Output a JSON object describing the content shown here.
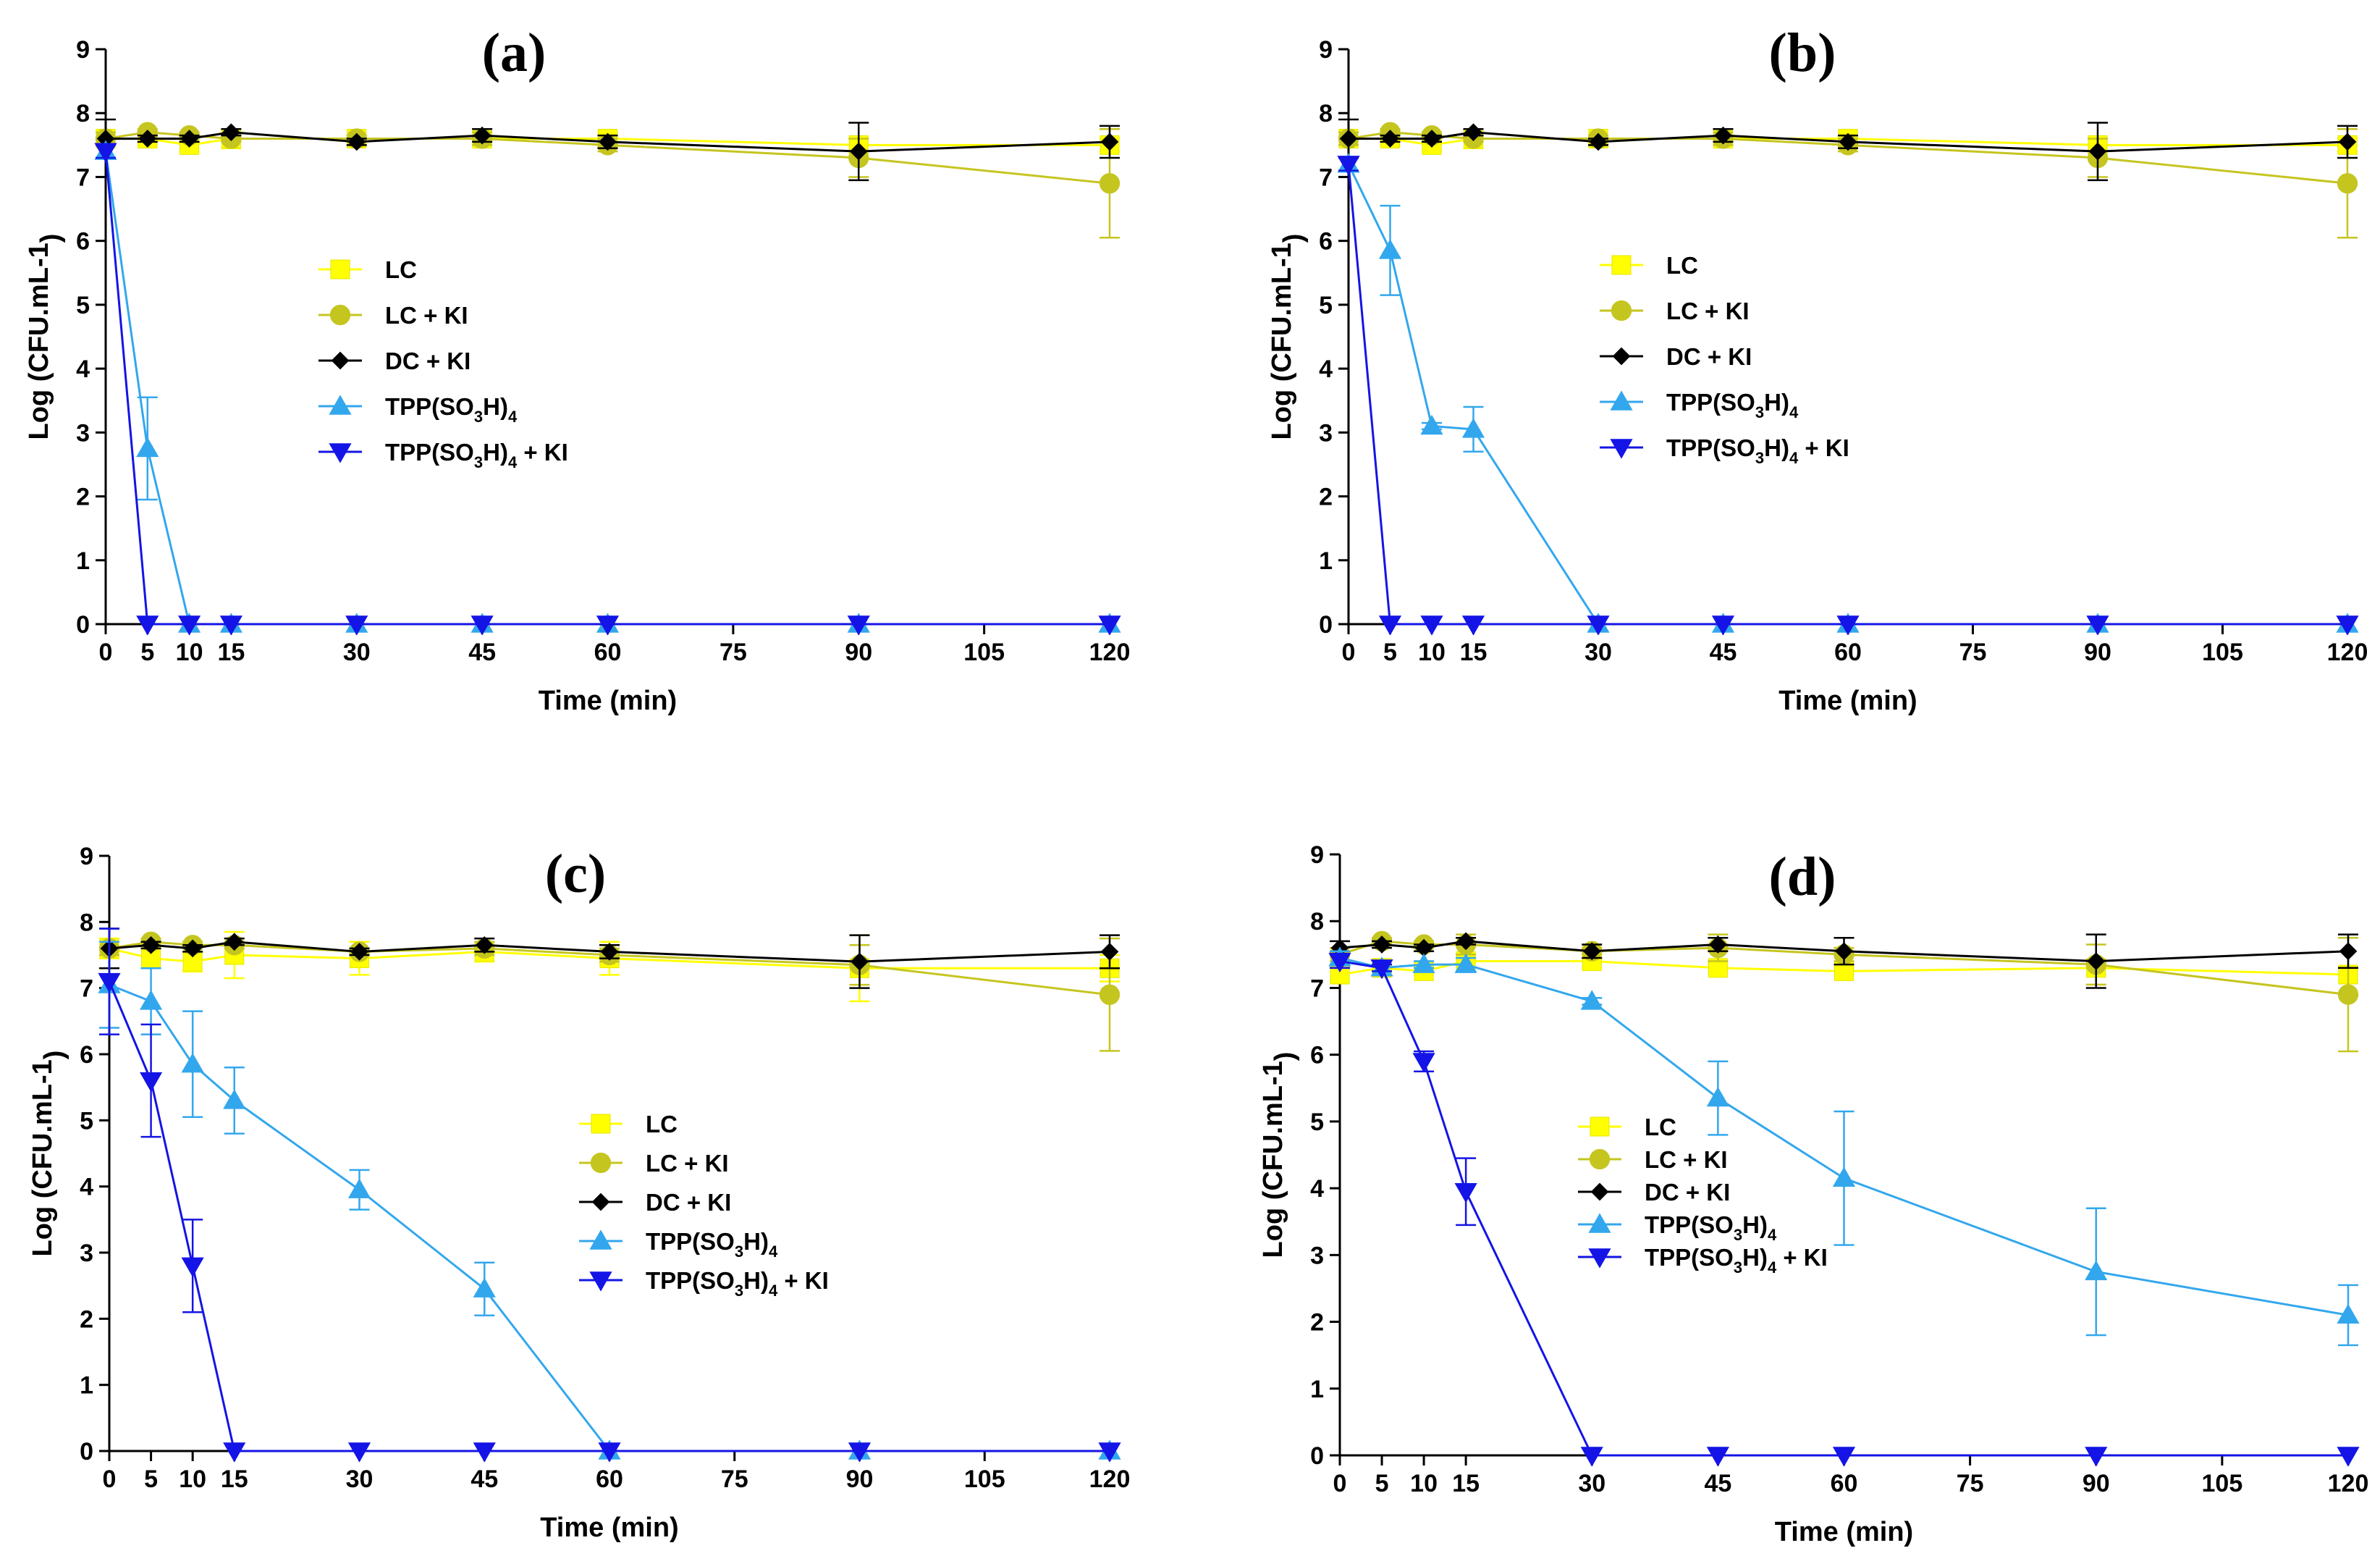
{
  "chart_data": [
    {
      "type": "line",
      "title": "(a)",
      "xlabel": "Time (min)",
      "ylabel": "Log (CFU.mL-1)",
      "xlim": [
        0,
        120
      ],
      "ylim": [
        0,
        9
      ],
      "xticks": [
        0,
        5,
        10,
        15,
        30,
        45,
        60,
        75,
        90,
        105,
        120
      ],
      "yticks": [
        0,
        1,
        2,
        3,
        4,
        5,
        6,
        7,
        8,
        9
      ],
      "legend_position": "center",
      "series": [
        {
          "name": "LC",
          "color": "#ffff00",
          "marker": "square",
          "x": [
            0,
            5,
            10,
            15,
            30,
            45,
            60,
            90,
            120
          ],
          "y": [
            7.6,
            7.6,
            7.5,
            7.6,
            7.6,
            7.6,
            7.6,
            7.5,
            7.5
          ],
          "err": [
            0.1,
            0.1,
            0.1,
            0.15,
            0.05,
            0.1,
            0.1,
            0.1,
            0.1
          ]
        },
        {
          "name": "LC + KI",
          "color": "#c5c520",
          "marker": "circle",
          "x": [
            0,
            5,
            10,
            15,
            30,
            45,
            60,
            90,
            120
          ],
          "y": [
            7.6,
            7.7,
            7.65,
            7.6,
            7.6,
            7.6,
            7.5,
            7.3,
            6.9
          ],
          "err": [
            0.1,
            0.05,
            0.05,
            0.05,
            0.05,
            0.1,
            0.1,
            0.3,
            0.85
          ]
        },
        {
          "name": "DC + KI",
          "color": "#000000",
          "marker": "diamond",
          "x": [
            0,
            5,
            10,
            15,
            30,
            45,
            60,
            90,
            120
          ],
          "y": [
            7.6,
            7.6,
            7.6,
            7.7,
            7.55,
            7.65,
            7.55,
            7.4,
            7.55
          ],
          "err": [
            0.3,
            0.05,
            0.05,
            0.05,
            0.05,
            0.1,
            0.1,
            0.45,
            0.25
          ]
        },
        {
          "name": "TPP(SO3H)4",
          "label_main": "TPP(SO",
          "label_sub1": "3",
          "label_mid": "H)",
          "label_sub2": "4",
          "label_tail": "",
          "color": "#33a7ed",
          "marker": "triangle-up",
          "x": [
            0,
            5,
            10,
            15,
            30,
            45,
            60,
            90,
            120
          ],
          "y": [
            7.4,
            2.75,
            0,
            0,
            0,
            0,
            0,
            0,
            0
          ],
          "err": [
            0.1,
            0.8,
            0,
            0,
            0,
            0,
            0,
            0,
            0
          ]
        },
        {
          "name": "TPP(SO3H)4 + KI",
          "label_main": "TPP(SO",
          "label_sub1": "3",
          "label_mid": "H)",
          "label_sub2": "4",
          "label_tail": " + KI",
          "color": "#1414e6",
          "marker": "triangle-down",
          "x": [
            0,
            5,
            10,
            15,
            30,
            45,
            60,
            90,
            120
          ],
          "y": [
            7.4,
            0,
            0,
            0,
            0,
            0,
            0,
            0,
            0
          ],
          "err": [
            0.1,
            0,
            0,
            0,
            0,
            0,
            0,
            0,
            0
          ]
        }
      ]
    },
    {
      "type": "line",
      "title": "(b)",
      "xlabel": "Time (min)",
      "ylabel": "Log (CFU.mL-1)",
      "xlim": [
        0,
        120
      ],
      "ylim": [
        0,
        9
      ],
      "xticks": [
        0,
        5,
        10,
        15,
        30,
        45,
        60,
        75,
        90,
        105,
        120
      ],
      "yticks": [
        0,
        1,
        2,
        3,
        4,
        5,
        6,
        7,
        8,
        9
      ],
      "legend_position": "center",
      "series": [
        {
          "name": "LC",
          "color": "#ffff00",
          "marker": "square",
          "x": [
            0,
            5,
            10,
            15,
            30,
            45,
            60,
            90,
            120
          ],
          "y": [
            7.6,
            7.6,
            7.5,
            7.6,
            7.6,
            7.6,
            7.6,
            7.5,
            7.5
          ],
          "err": [
            0.1,
            0.1,
            0.1,
            0.15,
            0.05,
            0.1,
            0.1,
            0.1,
            0.1
          ]
        },
        {
          "name": "LC + KI",
          "color": "#c5c520",
          "marker": "circle",
          "x": [
            0,
            5,
            10,
            15,
            30,
            45,
            60,
            90,
            120
          ],
          "y": [
            7.6,
            7.7,
            7.65,
            7.6,
            7.6,
            7.6,
            7.5,
            7.3,
            6.9
          ],
          "err": [
            0.1,
            0.05,
            0.05,
            0.05,
            0.05,
            0.1,
            0.1,
            0.3,
            0.85
          ]
        },
        {
          "name": "DC + KI",
          "color": "#000000",
          "marker": "diamond",
          "x": [
            0,
            5,
            10,
            15,
            30,
            45,
            60,
            90,
            120
          ],
          "y": [
            7.6,
            7.6,
            7.6,
            7.7,
            7.55,
            7.65,
            7.55,
            7.4,
            7.55
          ],
          "err": [
            0.3,
            0.05,
            0.05,
            0.05,
            0.05,
            0.1,
            0.1,
            0.45,
            0.25
          ]
        },
        {
          "name": "TPP(SO3H)4",
          "label_main": "TPP(SO",
          "label_sub1": "3",
          "label_mid": "H)",
          "label_sub2": "4",
          "label_tail": "",
          "color": "#33a7ed",
          "marker": "triangle-up",
          "x": [
            0,
            5,
            10,
            15,
            30,
            45,
            60,
            90,
            120
          ],
          "y": [
            7.2,
            5.85,
            3.1,
            3.05,
            0,
            0,
            0,
            0,
            0
          ],
          "err": [
            0.1,
            0.7,
            0.05,
            0.35,
            0,
            0,
            0,
            0,
            0
          ]
        },
        {
          "name": "TPP(SO3H)4 + KI",
          "label_main": "TPP(SO",
          "label_sub1": "3",
          "label_mid": "H)",
          "label_sub2": "4",
          "label_tail": " + KI",
          "color": "#1414e6",
          "marker": "triangle-down",
          "x": [
            0,
            5,
            10,
            15,
            30,
            45,
            60,
            90,
            120
          ],
          "y": [
            7.2,
            0,
            0,
            0,
            0,
            0,
            0,
            0,
            0
          ],
          "err": [
            0.1,
            0,
            0,
            0,
            0,
            0,
            0,
            0,
            0
          ]
        }
      ]
    },
    {
      "type": "line",
      "title": "(c)",
      "xlabel": "Time (min)",
      "ylabel": "Log (CFU.mL-1)",
      "xlim": [
        0,
        120
      ],
      "ylim": [
        0,
        9
      ],
      "xticks": [
        0,
        5,
        10,
        15,
        30,
        45,
        60,
        75,
        90,
        105,
        120
      ],
      "yticks": [
        0,
        1,
        2,
        3,
        4,
        5,
        6,
        7,
        8,
        9
      ],
      "legend_position": "center",
      "series": [
        {
          "name": "LC",
          "color": "#ffff00",
          "marker": "square",
          "x": [
            0,
            5,
            10,
            15,
            30,
            45,
            60,
            90,
            120
          ],
          "y": [
            7.6,
            7.45,
            7.4,
            7.5,
            7.45,
            7.55,
            7.45,
            7.3,
            7.3
          ],
          "err": [
            0.15,
            0.15,
            0.15,
            0.35,
            0.25,
            0.15,
            0.25,
            0.5,
            0.2
          ]
        },
        {
          "name": "LC + KI",
          "color": "#c5c520",
          "marker": "circle",
          "x": [
            0,
            5,
            10,
            15,
            30,
            45,
            60,
            90,
            120
          ],
          "y": [
            7.6,
            7.7,
            7.65,
            7.65,
            7.55,
            7.6,
            7.5,
            7.35,
            6.9
          ],
          "err": [
            0.1,
            0.05,
            0.05,
            0.05,
            0.05,
            0.1,
            0.1,
            0.3,
            0.85
          ]
        },
        {
          "name": "DC + KI",
          "color": "#000000",
          "marker": "diamond",
          "x": [
            0,
            5,
            10,
            15,
            30,
            45,
            60,
            90,
            120
          ],
          "y": [
            7.6,
            7.65,
            7.6,
            7.7,
            7.55,
            7.65,
            7.55,
            7.4,
            7.55
          ],
          "err": [
            0.3,
            0.05,
            0.05,
            0.05,
            0.05,
            0.1,
            0.1,
            0.4,
            0.25
          ]
        },
        {
          "name": "TPP(SO3H)4",
          "label_main": "TPP(SO",
          "label_sub1": "3",
          "label_mid": "H)",
          "label_sub2": "4",
          "label_tail": "",
          "color": "#33a7ed",
          "marker": "triangle-up",
          "x": [
            0,
            5,
            10,
            15,
            30,
            45,
            60,
            90,
            120
          ],
          "y": [
            7.05,
            6.8,
            5.85,
            5.3,
            3.95,
            2.45,
            0,
            0,
            0
          ],
          "err": [
            0.65,
            0.5,
            0.8,
            0.5,
            0.3,
            0.4,
            0,
            0,
            0
          ]
        },
        {
          "name": "TPP(SO3H)4 + KI",
          "label_main": "TPP(SO",
          "label_sub1": "3",
          "label_mid": "H)",
          "label_sub2": "4",
          "label_tail": " + KI",
          "color": "#1414e6",
          "marker": "triangle-down",
          "x": [
            0,
            5,
            10,
            15,
            30,
            45,
            60,
            90,
            120
          ],
          "y": [
            7.1,
            5.6,
            2.8,
            0,
            0,
            0,
            0,
            0,
            0
          ],
          "err": [
            0.8,
            0.85,
            0.7,
            0,
            0,
            0,
            0,
            0,
            0
          ]
        }
      ]
    },
    {
      "type": "line",
      "title": "(d)",
      "xlabel": "Time (min)",
      "ylabel": "Log (CFU.mL-1)",
      "xlim": [
        0,
        120
      ],
      "ylim": [
        0,
        9
      ],
      "xticks": [
        0,
        5,
        10,
        15,
        30,
        45,
        60,
        75,
        90,
        105,
        120
      ],
      "yticks": [
        0,
        1,
        2,
        3,
        4,
        5,
        6,
        7,
        8,
        9
      ],
      "legend_position": "center-left",
      "series": [
        {
          "name": "LC",
          "color": "#ffff00",
          "marker": "square",
          "x": [
            0,
            5,
            10,
            15,
            30,
            45,
            60,
            90,
            120
          ],
          "y": [
            7.2,
            7.3,
            7.25,
            7.4,
            7.4,
            7.3,
            7.25,
            7.3,
            7.2
          ],
          "err": [
            0.1,
            0.05,
            0.05,
            0.1,
            0.1,
            0.05,
            0.05,
            0.1,
            0.1
          ]
        },
        {
          "name": "LC + KI",
          "color": "#c5c520",
          "marker": "circle",
          "x": [
            0,
            5,
            10,
            15,
            30,
            45,
            60,
            90,
            120
          ],
          "y": [
            7.5,
            7.7,
            7.65,
            7.65,
            7.55,
            7.6,
            7.5,
            7.35,
            6.9
          ],
          "err": [
            0.1,
            0.05,
            0.05,
            0.15,
            0.05,
            0.2,
            0.1,
            0.3,
            0.85
          ]
        },
        {
          "name": "DC + KI",
          "color": "#000000",
          "marker": "diamond",
          "x": [
            0,
            5,
            10,
            15,
            30,
            45,
            60,
            90,
            120
          ],
          "y": [
            7.6,
            7.65,
            7.6,
            7.7,
            7.55,
            7.65,
            7.55,
            7.4,
            7.55
          ],
          "err": [
            0.1,
            0.05,
            0.05,
            0.05,
            0.1,
            0.1,
            0.2,
            0.4,
            0.25
          ]
        },
        {
          "name": "TPP(SO3H)4",
          "label_main": "TPP(SO",
          "label_sub1": "3",
          "label_mid": "H)",
          "label_sub2": "4",
          "label_tail": "",
          "color": "#33a7ed",
          "marker": "triangle-up",
          "x": [
            0,
            5,
            10,
            15,
            30,
            45,
            60,
            90,
            120
          ],
          "y": [
            7.45,
            7.3,
            7.35,
            7.35,
            6.8,
            5.35,
            4.15,
            2.75,
            2.1
          ],
          "err": [
            0.1,
            0.05,
            0.05,
            0.1,
            0.05,
            0.55,
            1.0,
            0.95,
            0.45
          ]
        },
        {
          "name": "TPP(SO3H)4 + KI",
          "label_main": "TPP(SO",
          "label_sub1": "3",
          "label_mid": "H)",
          "label_sub2": "4",
          "label_tail": " + KI",
          "color": "#1414e6",
          "marker": "triangle-down",
          "x": [
            0,
            5,
            10,
            15,
            30,
            45,
            60,
            90,
            120
          ],
          "y": [
            7.4,
            7.3,
            5.9,
            3.95,
            0,
            0,
            0,
            0,
            0
          ],
          "err": [
            0.1,
            0.05,
            0.15,
            0.5,
            0,
            0,
            0,
            0,
            0
          ]
        }
      ]
    }
  ]
}
